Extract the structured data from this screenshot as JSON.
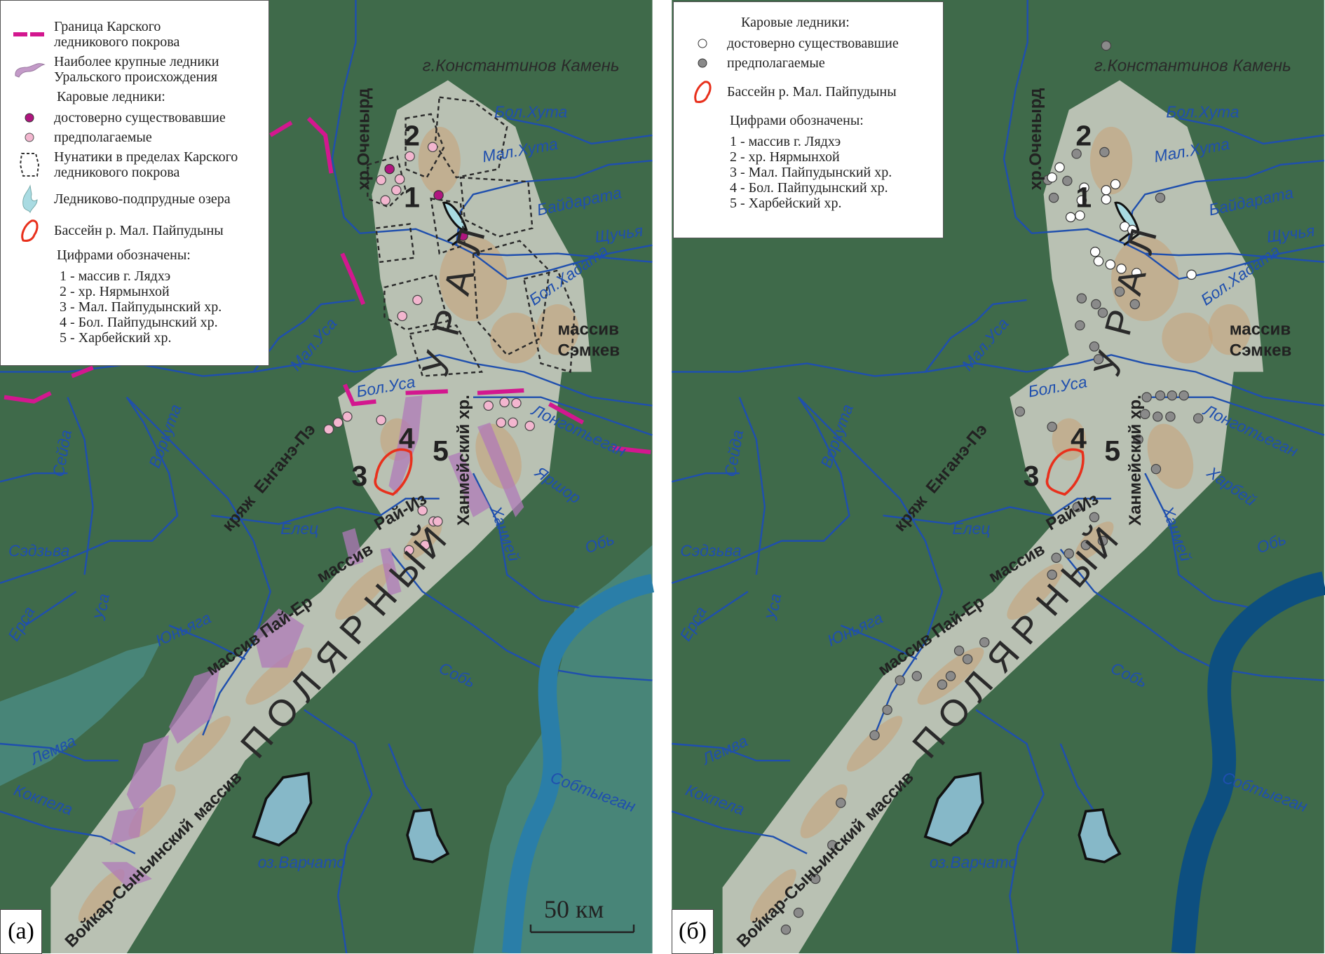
{
  "panels": {
    "a": {
      "tag": "(a)",
      "scale_bar_label": "50 км",
      "legend": {
        "boundary": "Граница Карского\nледникового покрова",
        "large_glaciers": "Наиболее крупные ледники\nУральского происхождения",
        "cirque_header": "Каровые ледники:",
        "cirque_reliable": "достоверно существовавшие",
        "cirque_assumed": "предполагаемые",
        "nunataks": "Нунатики в пределах Карского\nледникового покрова",
        "dammed_lakes": "Ледниково-подпрудные озера",
        "basin": "Бассейн р. Мал. Пайпудыны",
        "numbers_header": "Цифрами обозначены:",
        "numbers": [
          "1 - массив г. Лядхэ",
          "2 - хр. Нярмынхой",
          "3 - Мал. Пайпудынский хр.",
          "4 - Бол. Пайпудынский хр.",
          "5 - Харбейский хр."
        ]
      },
      "labels": {
        "konst": "г.Константинов Камень",
        "ochenyrd": "хр.Оченырд",
        "bolhuta": "Бол.Хута",
        "malhuta": "Мал.Хута",
        "baidarata": "Байдарата",
        "shchuchya": "Щучья",
        "bolhadata": "Бол.Хадата",
        "semkev1": "массив",
        "semkev2": "Сэмкев",
        "malusa": "Мал.Уса",
        "bolusa": "Бол.Уса",
        "ural": "У Р А Л",
        "hanmeisky": "Ханмейский хр.",
        "kryazh": "кряж",
        "enganepe": "Енганэ-Пэ",
        "n1": "1",
        "n2": "2",
        "n3": "3",
        "n4": "4",
        "n5": "5",
        "longot": "Лонготьеган",
        "yarshor": "Яршор",
        "hanmei": "Ханмей",
        "ob": "Обь",
        "raiiz1": "массив",
        "raiiz2": "Рай-Из",
        "elets": "Елец",
        "vorkuta": "Воркута",
        "seida": "Сейда",
        "sedzva": "Сэдзьва",
        "usa": "Уса",
        "ersa": "Ерса",
        "yunyaga": "Юньяга",
        "payer": "массив Пай-Ер",
        "polyarny": "П О Л Я Р Н Ы Й",
        "sob": "Собь",
        "lemva": "Лемва",
        "sobtyegan": "Собтыеган",
        "kokpela": "Кокпела",
        "varchato": "оз.Варчато",
        "voikar": "Войкар-Сыньинский",
        "voikar2": "массив"
      }
    },
    "b": {
      "tag": "(б)",
      "legend": {
        "cirque_header": "Каровые ледники:",
        "cirque_reliable": "достоверно существовавшие",
        "cirque_assumed": "предполагаемые",
        "basin": "Бассейн р. Мал. Пайпудыны",
        "numbers_header": "Цифрами обозначены:",
        "numbers": [
          "1 - массив г. Лядхэ",
          "2 - хр. Нярмынхой",
          "3 - Мал. Пайпудынский хр.",
          "4 - Бол. Пайпудынский хр.",
          "5 - Харбейский хр."
        ]
      },
      "labels": {
        "konst": "г.Константинов Камень",
        "ochenyrd": "хр.Оченырд",
        "bolhuta": "Бол.Хута",
        "malhuta": "Мал.Хута",
        "baidarata": "Байдарата",
        "shchuchya": "Щучья",
        "bolhadata": "Бол.Хадата",
        "semkev1": "массив",
        "semkev2": "Сэмкев",
        "malusa": "Мал.Уса",
        "bolusa": "Бол.Уса",
        "ural": "У Р А Л",
        "hanmeisky": "Ханмейский хр.",
        "kryazh": "кряж",
        "enganepe": "Енганэ-Пэ",
        "n1": "1",
        "n2": "2",
        "n3": "3",
        "n4": "4",
        "n5": "5",
        "longot": "Лонготьеган",
        "yarshor": "Харбей",
        "hanmei": "Ханмей",
        "ob": "Обь",
        "raiiz1": "массив",
        "raiiz2": "Рай-Из",
        "elets": "Елец",
        "vorkuta": "Воркута",
        "seida": "Сейда",
        "sedzva": "Сэдзьва",
        "usa": "Уса",
        "ersa": "Ерса",
        "yunyaga": "Юньяга",
        "payer": "массив Пай-Ер",
        "polyarny": "П О Л Я Р Н Ы Й",
        "sob": "Собь",
        "lemva": "Лемва",
        "sobtyegan": "Собтыеган",
        "kokpela": "Кокпела",
        "varchato": "оз.Варчато",
        "voikar": "Войкар-Сыньинский",
        "voikar2": "массив"
      }
    }
  },
  "colors": {
    "terrain": "#3f6a4a",
    "ridge": "#cfd0c6",
    "ridge_tan": "#c7a47a",
    "river": "#1f4fae",
    "lowland_teal": "#4a8a80",
    "ob_a": "#2a7ea8",
    "ob_b": "#0d4f80",
    "lake": "#86b8c8",
    "boundary": "#d3178f",
    "glacier": "#b07ab8",
    "cirque_reliable_a": "#b0157f",
    "cirque_assumed_a": "#f3b6cf",
    "cirque_reliable_b": "#ffffff",
    "cirque_assumed_b": "#8a8a8a",
    "basin": "#e8301c"
  }
}
